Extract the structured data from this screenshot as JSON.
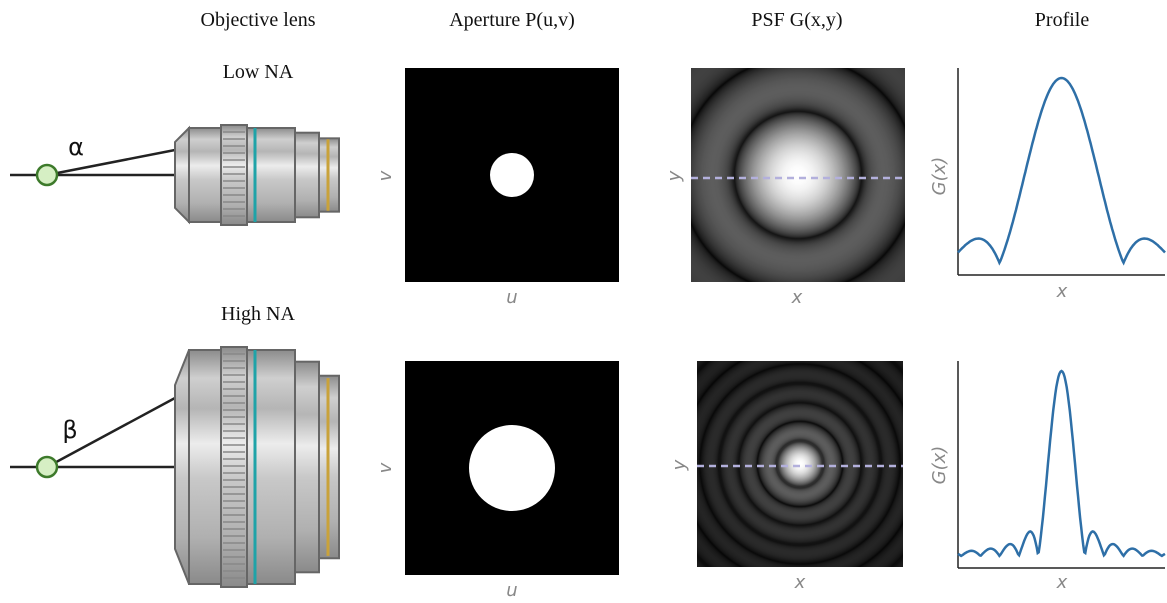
{
  "columns": [
    "Objective lens",
    "Aperture P(u,v)",
    "PSF G(x,y)",
    "Profile"
  ],
  "rows": [
    {
      "label": "Low NA",
      "angle": "α",
      "aperture_axes": {
        "x": "u",
        "y": "v"
      },
      "psf_axes": {
        "x": "x",
        "y": "y"
      },
      "profile_axes": {
        "x": "x",
        "y": "G(x)"
      }
    },
    {
      "label": "High NA",
      "angle": "β",
      "aperture_axes": {
        "x": "u",
        "y": "v"
      },
      "psf_axes": {
        "x": "x",
        "y": "y"
      },
      "profile_axes": {
        "x": "x",
        "y": "G(x)"
      }
    }
  ]
}
